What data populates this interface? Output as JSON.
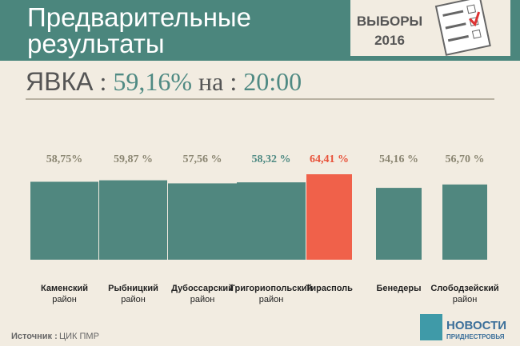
{
  "chart_data": {
    "type": "bar",
    "title": [
      "Предварительные",
      "результаты"
    ],
    "badge": [
      "ВЫБОРЫ",
      "2016"
    ],
    "turnout_label": "ЯВКА",
    "separator": ":",
    "turnout_value": "59,16%",
    "time_label": "на",
    "time_value": "20:00",
    "categories": [
      "Каменский район",
      "Рыбницкий район",
      "Дубоссарский район",
      "Григориопольский район",
      "Тирасполь",
      "Бенедеры",
      "Слободзейский район"
    ],
    "values": [
      58.75,
      59.87,
      57.56,
      58.32,
      64.41,
      54.16,
      56.7
    ],
    "value_labels": [
      "58,75%",
      "59,87 %",
      "57,56 %",
      "58,32 %",
      "64,41 %",
      "54,16 %",
      "56,70 %"
    ],
    "colors": [
      "#50877f",
      "#50877f",
      "#50877f",
      "#50877f",
      "#f0614a",
      "#50877f",
      "#50877f"
    ],
    "label_colors": [
      "#8b8672",
      "#8b8672",
      "#8b8672",
      "#4f8a83",
      "#e8533b",
      "#8b8672",
      "#8b8672"
    ],
    "source_label": "Источник :",
    "source": "ЦИК ПМР",
    "logo": [
      "НОВОСТИ",
      "ПРИДНЕСТРОВЬЯ"
    ]
  }
}
